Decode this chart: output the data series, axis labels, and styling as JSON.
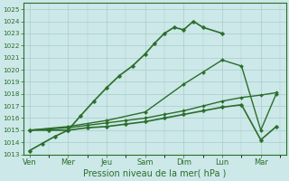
{
  "xlabel": "Pression niveau de la mer( hPa )",
  "x_labels": [
    "Ven",
    "Mer",
    "Jeu",
    "Sam",
    "Dim",
    "Lun",
    "Mar"
  ],
  "x_tick_pos": [
    0,
    1,
    2,
    3,
    4,
    5,
    6
  ],
  "ylim": [
    1013,
    1025.5
  ],
  "yticks": [
    1013,
    1014,
    1015,
    1016,
    1017,
    1018,
    1019,
    1020,
    1021,
    1022,
    1023,
    1024,
    1025
  ],
  "bg_color": "#cce8e8",
  "grid_color": "#aacccc",
  "line_color": "#2a6e2a",
  "series": [
    {
      "x": [
        0,
        0.33,
        0.67,
        1.0,
        1.33,
        1.67,
        2.0,
        2.33,
        2.67,
        3.0,
        3.25,
        3.5,
        3.75,
        4.0,
        4.25,
        4.5,
        5.0
      ],
      "y": [
        1013.3,
        1013.9,
        1014.5,
        1015.0,
        1016.2,
        1017.4,
        1018.5,
        1019.5,
        1020.3,
        1021.3,
        1022.2,
        1023.0,
        1023.5,
        1023.3,
        1024.0,
        1023.5,
        1023.0
      ],
      "lw": 1.2,
      "ms": 2.5
    },
    {
      "x": [
        0,
        0.5,
        1.0,
        1.5,
        2.0,
        2.5,
        3.0,
        3.5,
        4.0,
        4.5,
        5.0,
        5.5,
        6.0,
        6.4
      ],
      "y": [
        1015.0,
        1015.1,
        1015.2,
        1015.4,
        1015.6,
        1015.8,
        1016.0,
        1016.3,
        1016.6,
        1017.0,
        1017.4,
        1017.7,
        1017.9,
        1018.1
      ],
      "lw": 1.0,
      "ms": 2.0
    },
    {
      "x": [
        0,
        1.0,
        2.0,
        3.0,
        4.0,
        4.5,
        5.0,
        5.5,
        6.0,
        6.4
      ],
      "y": [
        1015.0,
        1015.3,
        1015.8,
        1016.5,
        1018.8,
        1019.8,
        1020.8,
        1020.3,
        1015.0,
        1018.0
      ],
      "lw": 1.0,
      "ms": 2.2
    },
    {
      "x": [
        0,
        0.5,
        1.0,
        1.5,
        2.0,
        2.5,
        3.0,
        3.5,
        4.0,
        4.5,
        5.0,
        5.5,
        6.0,
        6.4
      ],
      "y": [
        1015.0,
        1015.0,
        1015.0,
        1015.2,
        1015.3,
        1015.5,
        1015.7,
        1016.0,
        1016.3,
        1016.6,
        1016.9,
        1017.1,
        1014.2,
        1015.3
      ],
      "lw": 1.2,
      "ms": 2.5
    }
  ]
}
